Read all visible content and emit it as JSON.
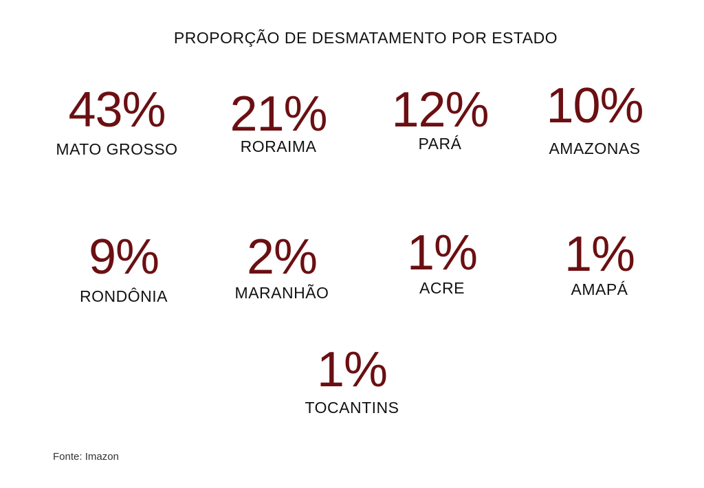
{
  "chart_data": {
    "type": "table",
    "title": "PROPORÇÃO DE DESMATAMENTO POR ESTADO",
    "unit": "%",
    "categories": [
      "MATO GROSSO",
      "RORAIMA",
      "PARÁ",
      "AMAZONAS",
      "RONDÔNIA",
      "MARANHÃO",
      "ACRE",
      "AMAPÁ",
      "TOCANTINS"
    ],
    "values": [
      43,
      21,
      12,
      10,
      9,
      2,
      1,
      1,
      1
    ],
    "value_labels": [
      "43%",
      "21%",
      "12%",
      "10%",
      "9%",
      "2%",
      "1%",
      "1%",
      "1%"
    ],
    "source": "Fonte: Imazon"
  },
  "colors": {
    "value": "#6b0f12",
    "label": "#111111"
  }
}
